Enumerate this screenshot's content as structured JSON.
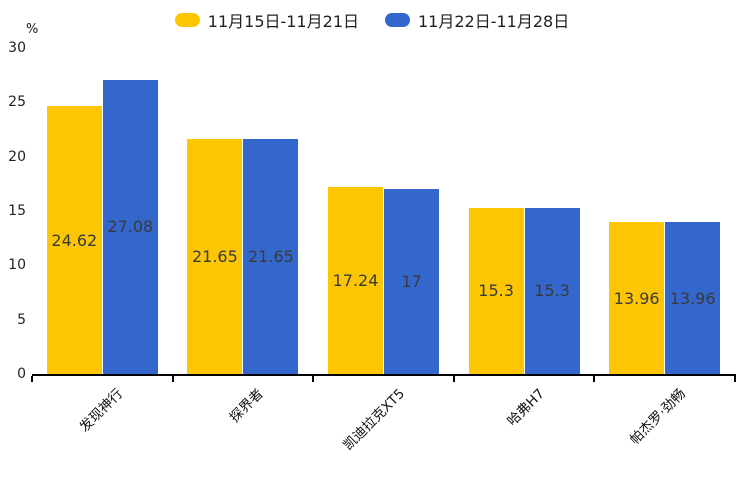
{
  "chart_data": {
    "type": "bar",
    "title": "",
    "xlabel": "",
    "ylabel": "%",
    "ylim": [
      0,
      30
    ],
    "yticks": [
      0,
      5,
      10,
      15,
      20,
      25,
      30
    ],
    "grid": false,
    "legend_position": "top-center",
    "value_labels_shown": true,
    "categories": [
      "发现神行",
      "探界者",
      "凯迪拉克XT5",
      "哈弗H7",
      "帕杰罗·劲畅"
    ],
    "series": [
      {
        "name": "11月15日-11月21日",
        "color": "#FDC603",
        "values": [
          24.62,
          21.65,
          17.24,
          15.3,
          13.96
        ]
      },
      {
        "name": "11月22日-11月28日",
        "color": "#3467CB",
        "values": [
          27.08,
          21.65,
          17,
          15.3,
          13.96
        ]
      }
    ]
  },
  "colors": {
    "background": "#FFFFFF",
    "series_yellow": "#FDC603",
    "series_blue": "#3467CB",
    "axis": "#000000",
    "tick_label": "#222222",
    "value_label": "#3A3A3A",
    "legend_text": "#212121"
  }
}
